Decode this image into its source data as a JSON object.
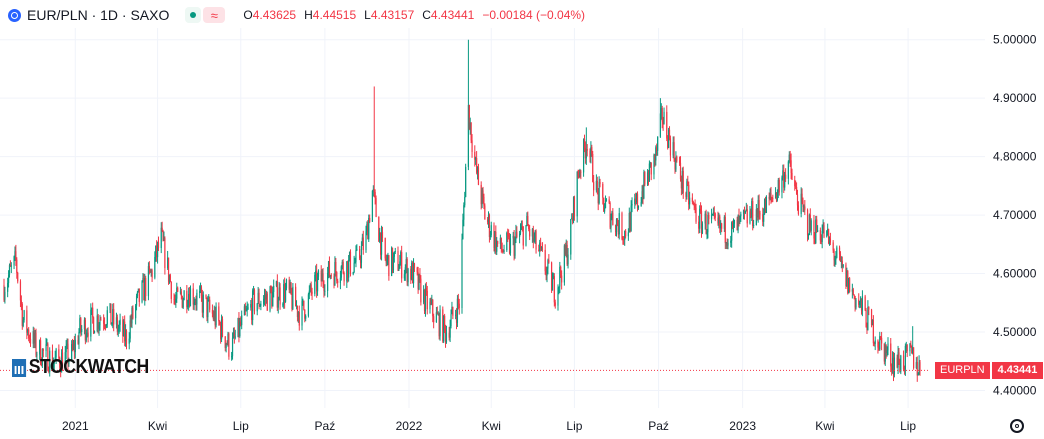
{
  "header": {
    "title": "EUR/PLN · 1D · SAXO",
    "live_icon": "live-dot-icon",
    "approx_label": "≈",
    "ohlc": [
      {
        "key": "O",
        "value": "4.43625"
      },
      {
        "key": "H",
        "value": "4.44515"
      },
      {
        "key": "L",
        "value": "4.43157"
      },
      {
        "key": "C",
        "value": "4.43441"
      }
    ],
    "change": "−0.00184 (−0.04%)"
  },
  "watermark": "STOCKWATCH",
  "price_label": {
    "symbol": "EURPLN",
    "value": "4.43441"
  },
  "colors": {
    "up": "#089981",
    "down": "#f23645",
    "grid": "#f0f3fa",
    "axis_text": "#131722"
  },
  "chart_data": {
    "type": "candlestick",
    "title": "EUR/PLN · 1D · SAXO",
    "ylim": [
      4.37,
      5.02
    ],
    "y_ticks": [
      "4.40000",
      "4.50000",
      "4.60000",
      "4.70000",
      "4.80000",
      "4.90000",
      "5.00000"
    ],
    "x_ticks": [
      {
        "label": "2021",
        "date": "2021-01-01"
      },
      {
        "label": "Kwi",
        "date": "2021-04-01"
      },
      {
        "label": "Lip",
        "date": "2021-07-01"
      },
      {
        "label": "Paź",
        "date": "2021-10-01"
      },
      {
        "label": "2022",
        "date": "2022-01-01"
      },
      {
        "label": "Kwi",
        "date": "2022-04-01"
      },
      {
        "label": "Lip",
        "date": "2022-07-01"
      },
      {
        "label": "Paź",
        "date": "2022-10-01"
      },
      {
        "label": "2023",
        "date": "2023-01-01"
      },
      {
        "label": "Kwi",
        "date": "2023-04-01"
      },
      {
        "label": "Lip",
        "date": "2023-07-01"
      }
    ],
    "date_range": [
      "2020-10-15",
      "2023-07-14"
    ],
    "close_path": [
      [
        "2020-10-15",
        4.58
      ],
      [
        "2020-10-28",
        4.62
      ],
      [
        "2020-11-05",
        4.52
      ],
      [
        "2020-11-20",
        4.47
      ],
      [
        "2020-12-10",
        4.45
      ],
      [
        "2020-12-28",
        4.46
      ],
      [
        "2021-01-05",
        4.5
      ],
      [
        "2021-01-20",
        4.52
      ],
      [
        "2021-02-05",
        4.53
      ],
      [
        "2021-02-25",
        4.49
      ],
      [
        "2021-03-10",
        4.55
      ],
      [
        "2021-03-25",
        4.6
      ],
      [
        "2021-04-05",
        4.66
      ],
      [
        "2021-04-20",
        4.55
      ],
      [
        "2021-05-05",
        4.57
      ],
      [
        "2021-05-20",
        4.55
      ],
      [
        "2021-06-05",
        4.52
      ],
      [
        "2021-06-20",
        4.47
      ],
      [
        "2021-07-01",
        4.51
      ],
      [
        "2021-07-15",
        4.55
      ],
      [
        "2021-08-01",
        4.56
      ],
      [
        "2021-08-20",
        4.57
      ],
      [
        "2021-09-05",
        4.53
      ],
      [
        "2021-09-20",
        4.58
      ],
      [
        "2021-10-05",
        4.6
      ],
      [
        "2021-10-20",
        4.61
      ],
      [
        "2021-11-05",
        4.62
      ],
      [
        "2021-11-15",
        4.66
      ],
      [
        "2021-11-22",
        4.74
      ],
      [
        "2021-12-05",
        4.62
      ],
      [
        "2021-12-20",
        4.62
      ],
      [
        "2022-01-05",
        4.6
      ],
      [
        "2022-01-20",
        4.55
      ],
      [
        "2022-02-10",
        4.5
      ],
      [
        "2022-02-25",
        4.55
      ],
      [
        "2022-03-07",
        4.88
      ],
      [
        "2022-03-15",
        4.78
      ],
      [
        "2022-03-25",
        4.7
      ],
      [
        "2022-04-10",
        4.64
      ],
      [
        "2022-04-25",
        4.65
      ],
      [
        "2022-05-10",
        4.68
      ],
      [
        "2022-05-25",
        4.63
      ],
      [
        "2022-06-10",
        4.57
      ],
      [
        "2022-06-25",
        4.65
      ],
      [
        "2022-07-05",
        4.77
      ],
      [
        "2022-07-15",
        4.83
      ],
      [
        "2022-07-25",
        4.74
      ],
      [
        "2022-08-10",
        4.7
      ],
      [
        "2022-08-25",
        4.67
      ],
      [
        "2022-09-10",
        4.73
      ],
      [
        "2022-09-28",
        4.8
      ],
      [
        "2022-10-05",
        4.87
      ],
      [
        "2022-10-15",
        4.82
      ],
      [
        "2022-10-30",
        4.74
      ],
      [
        "2022-11-15",
        4.69
      ],
      [
        "2022-12-01",
        4.68
      ],
      [
        "2022-12-20",
        4.67
      ],
      [
        "2023-01-10",
        4.7
      ],
      [
        "2023-01-25",
        4.71
      ],
      [
        "2023-02-10",
        4.75
      ],
      [
        "2023-02-20",
        4.79
      ],
      [
        "2023-03-01",
        4.73
      ],
      [
        "2023-03-15",
        4.68
      ],
      [
        "2023-03-31",
        4.67
      ],
      [
        "2023-04-15",
        4.62
      ],
      [
        "2023-04-30",
        4.57
      ],
      [
        "2023-05-15",
        4.53
      ],
      [
        "2023-05-31",
        4.48
      ],
      [
        "2023-06-15",
        4.45
      ],
      [
        "2023-06-25",
        4.45
      ],
      [
        "2023-07-05",
        4.46
      ],
      [
        "2023-07-14",
        4.434
      ]
    ],
    "spikes": [
      {
        "date": "2021-11-24",
        "high": 4.92
      },
      {
        "date": "2022-03-07",
        "high": 5.0
      },
      {
        "date": "2022-10-03",
        "high": 4.9
      },
      {
        "date": "2021-04-05",
        "high": 4.68
      },
      {
        "date": "2022-07-14",
        "high": 4.85
      },
      {
        "date": "2023-07-06",
        "high": 4.51
      }
    ],
    "last_close": 4.43441
  }
}
